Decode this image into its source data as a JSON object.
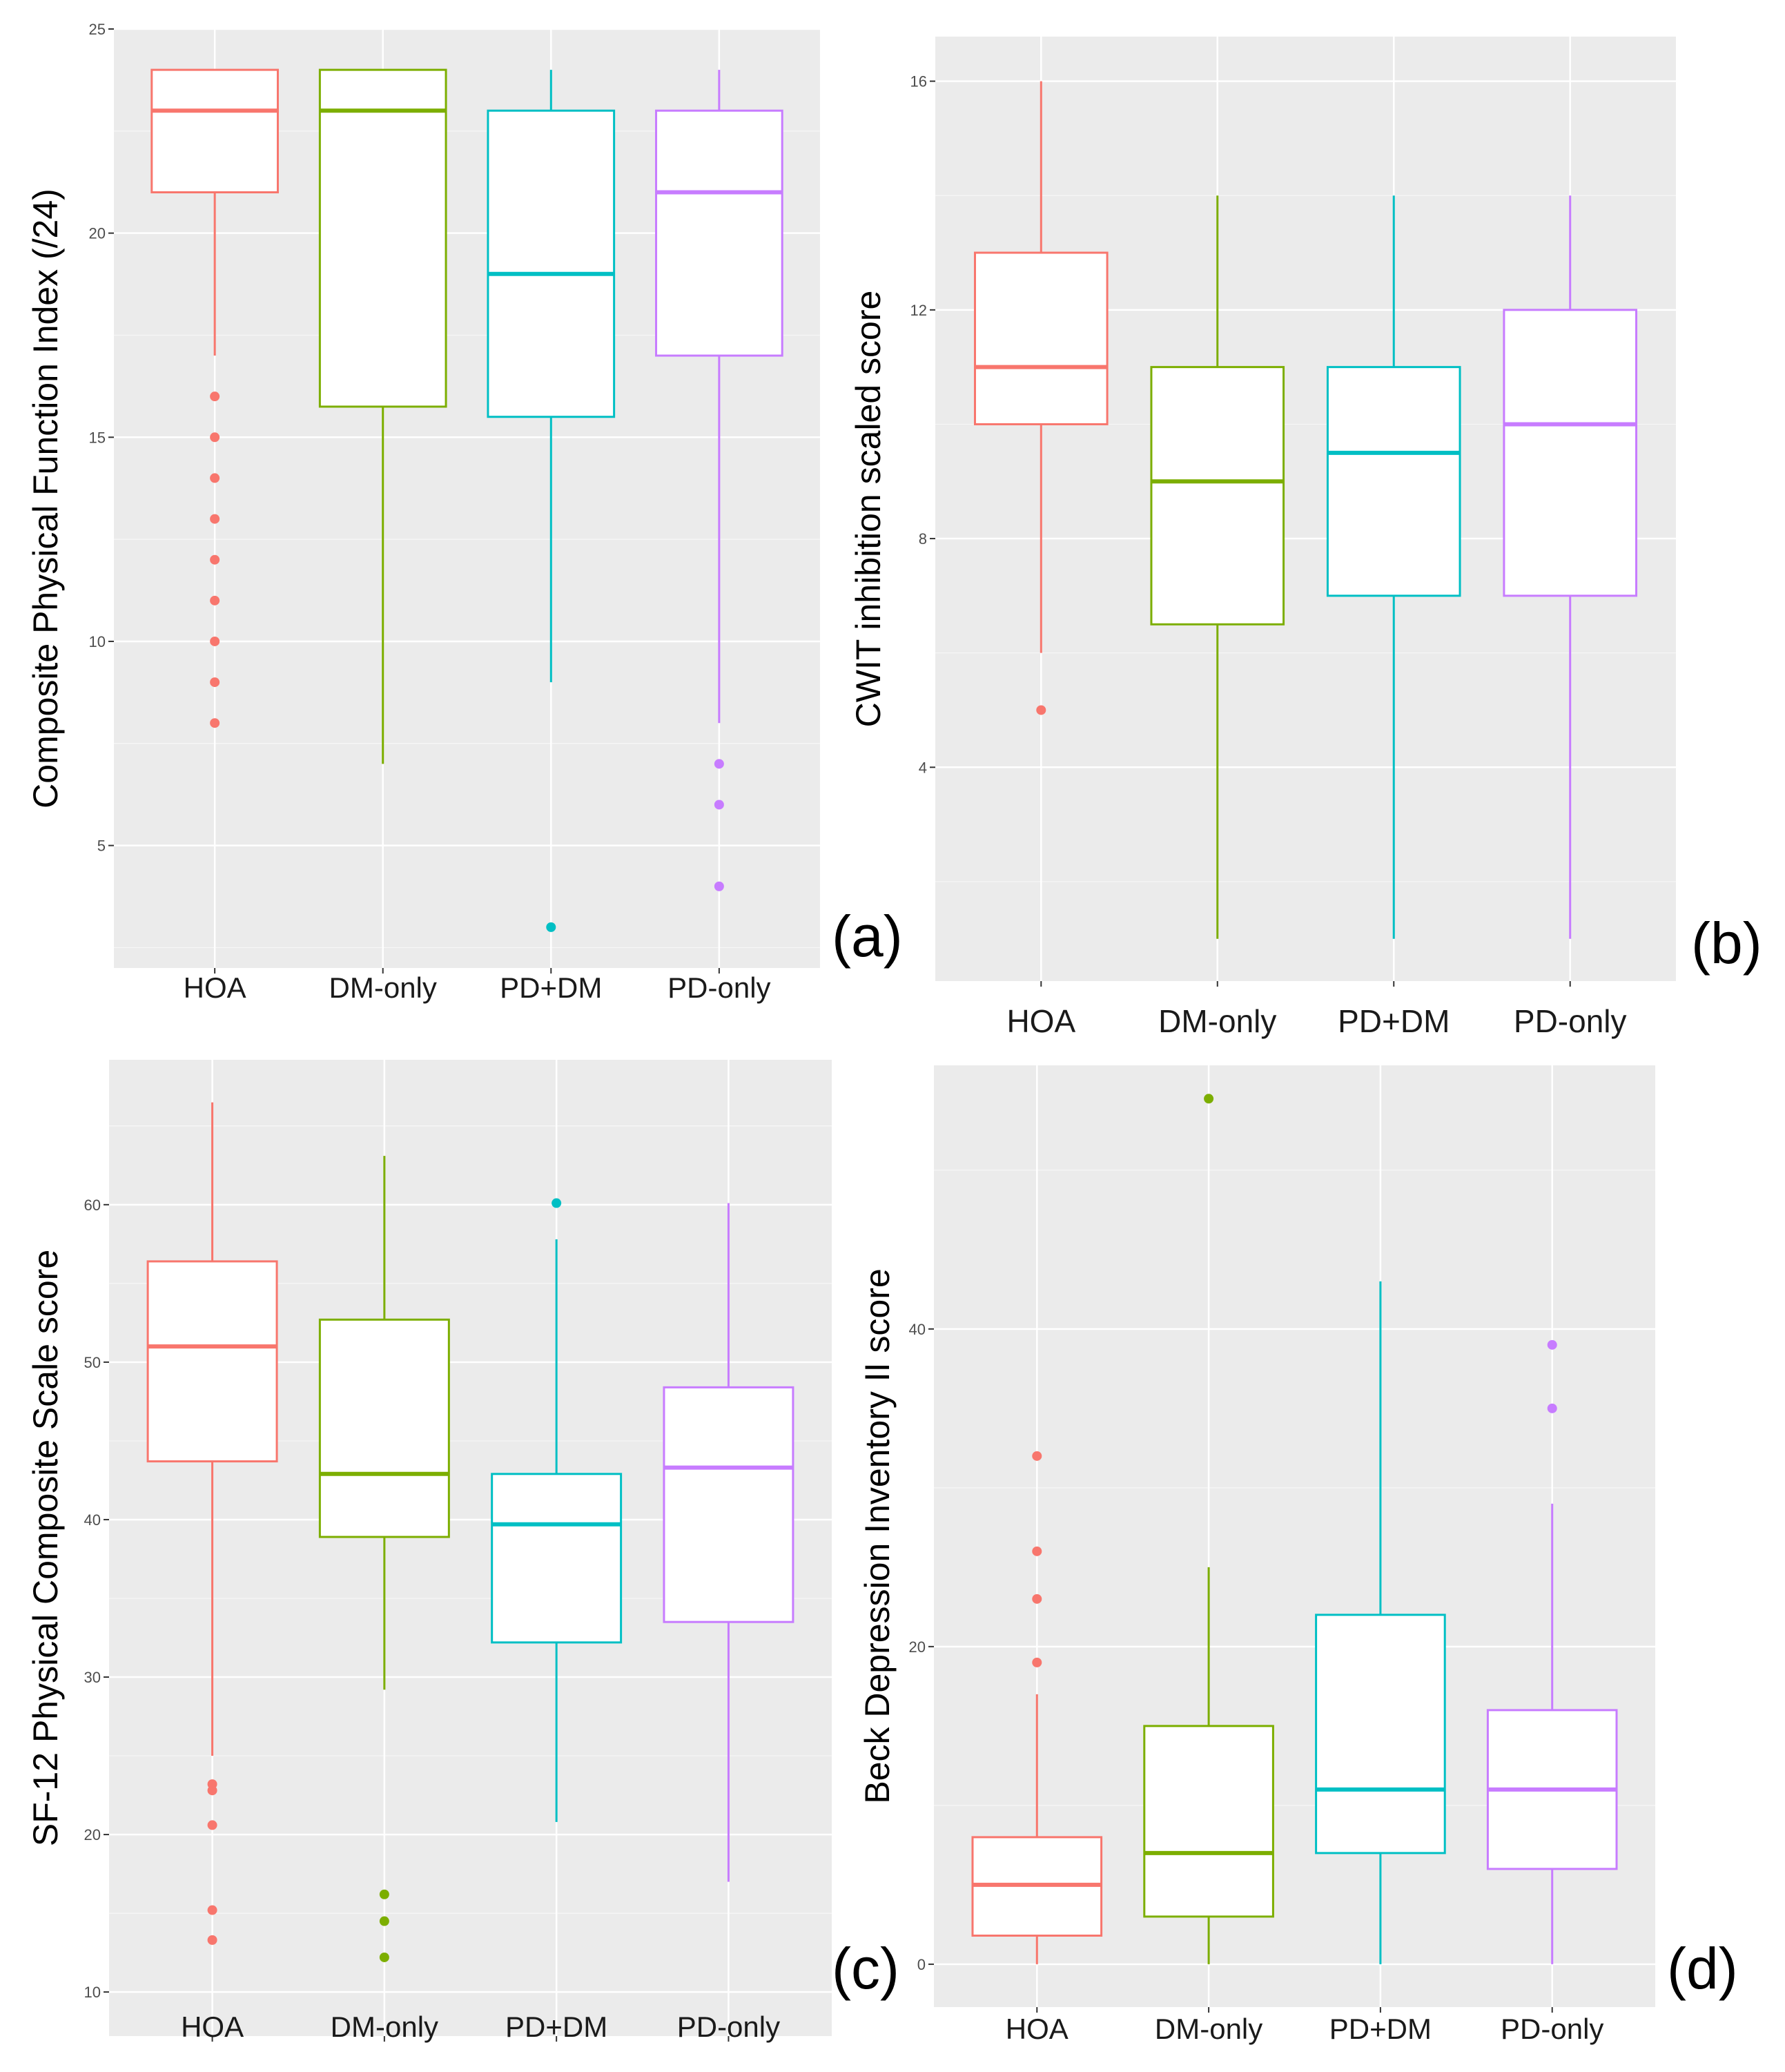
{
  "colors": {
    "HOA": "#F8766D",
    "DM-only": "#7CAE00",
    "PD+DM": "#00BFC4",
    "PD-only": "#C77CFF",
    "panel_bg": "#EBEBEB",
    "grid": "#FFFFFF"
  },
  "chart_data": [
    {
      "type": "box",
      "panel_label": "(a)",
      "ylabel": "Composite Physical Function Index (/24)",
      "xlabel": "",
      "categories": [
        "HOA",
        "DM-only",
        "PD+DM",
        "PD-only"
      ],
      "ylim": [
        2,
        25
      ],
      "yticks": [
        5,
        10,
        15,
        20,
        25
      ],
      "boxes": [
        {
          "group": "HOA",
          "lower": 17,
          "q1": 21,
          "median": 23,
          "q3": 24,
          "upper": 24,
          "outliers": [
            16,
            15,
            14,
            13,
            12,
            11,
            10,
            9,
            8
          ]
        },
        {
          "group": "DM-only",
          "lower": 7,
          "q1": 15.75,
          "median": 23,
          "q3": 24,
          "upper": 24,
          "outliers": []
        },
        {
          "group": "PD+DM",
          "lower": 9,
          "q1": 15.5,
          "median": 19,
          "q3": 23,
          "upper": 24,
          "outliers": [
            3
          ]
        },
        {
          "group": "PD-only",
          "lower": 8,
          "q1": 17,
          "median": 21,
          "q3": 23,
          "upper": 24,
          "outliers": [
            7,
            6,
            4
          ]
        }
      ]
    },
    {
      "type": "box",
      "panel_label": "(b)",
      "ylabel": "CWIT inhibition scaled score",
      "xlabel": "",
      "categories": [
        "HOA",
        "DM-only",
        "PD+DM",
        "PD-only"
      ],
      "ylim": [
        0.26,
        16.78
      ],
      "yticks": [
        4,
        8,
        12,
        16
      ],
      "boxes": [
        {
          "group": "HOA",
          "lower": 6,
          "q1": 10,
          "median": 11,
          "q3": 13,
          "upper": 16,
          "outliers": [
            5
          ]
        },
        {
          "group": "DM-only",
          "lower": 1,
          "q1": 6.5,
          "median": 9,
          "q3": 11,
          "upper": 14,
          "outliers": []
        },
        {
          "group": "PD+DM",
          "lower": 1,
          "q1": 7,
          "median": 9.5,
          "q3": 11,
          "upper": 14,
          "outliers": []
        },
        {
          "group": "PD-only",
          "lower": 1,
          "q1": 7,
          "median": 10,
          "q3": 12,
          "upper": 14,
          "outliers": []
        }
      ]
    },
    {
      "type": "box",
      "panel_label": "(c)",
      "ylabel": "SF-12 Physical Composite Scale score",
      "xlabel": "",
      "categories": [
        "HOA",
        "DM-only",
        "PD+DM",
        "PD-only"
      ],
      "ylim": [
        7.2,
        69.2
      ],
      "yticks": [
        10,
        20,
        30,
        40,
        50,
        60
      ],
      "boxes": [
        {
          "group": "HOA",
          "lower": 25,
          "q1": 43.7,
          "median": 51,
          "q3": 56.4,
          "upper": 66.5,
          "outliers": [
            23.2,
            22.8,
            20.6,
            15.2,
            13.3
          ]
        },
        {
          "group": "DM-only",
          "lower": 29.2,
          "q1": 38.9,
          "median": 42.9,
          "q3": 52.7,
          "upper": 63.1,
          "outliers": [
            16.2,
            14.5,
            12.2
          ]
        },
        {
          "group": "PD+DM",
          "lower": 20.8,
          "q1": 32.2,
          "median": 39.7,
          "q3": 42.9,
          "upper": 57.8,
          "outliers": [
            60.1
          ]
        },
        {
          "group": "PD-only",
          "lower": 17,
          "q1": 33.5,
          "median": 43.3,
          "q3": 48.4,
          "upper": 60.1,
          "outliers": []
        }
      ]
    },
    {
      "type": "box",
      "panel_label": "(d)",
      "ylabel": "Beck Depression Inventory II score",
      "xlabel": "",
      "categories": [
        "HOA",
        "DM-only",
        "PD+DM",
        "PD-only"
      ],
      "ylim": [
        -2.7,
        56.6
      ],
      "yticks": [
        0,
        20,
        40
      ],
      "boxes": [
        {
          "group": "HOA",
          "lower": 0,
          "q1": 1.8,
          "median": 5,
          "q3": 8,
          "upper": 17,
          "outliers": [
            32,
            26,
            23,
            19
          ]
        },
        {
          "group": "DM-only",
          "lower": 0,
          "q1": 3,
          "median": 7,
          "q3": 15,
          "upper": 25,
          "outliers": [
            54.5
          ]
        },
        {
          "group": "PD+DM",
          "lower": 0,
          "q1": 7,
          "median": 11,
          "q3": 22,
          "upper": 43,
          "outliers": []
        },
        {
          "group": "PD-only",
          "lower": 0,
          "q1": 6,
          "median": 11,
          "q3": 16,
          "upper": 29,
          "outliers": [
            39,
            35
          ]
        }
      ]
    }
  ]
}
